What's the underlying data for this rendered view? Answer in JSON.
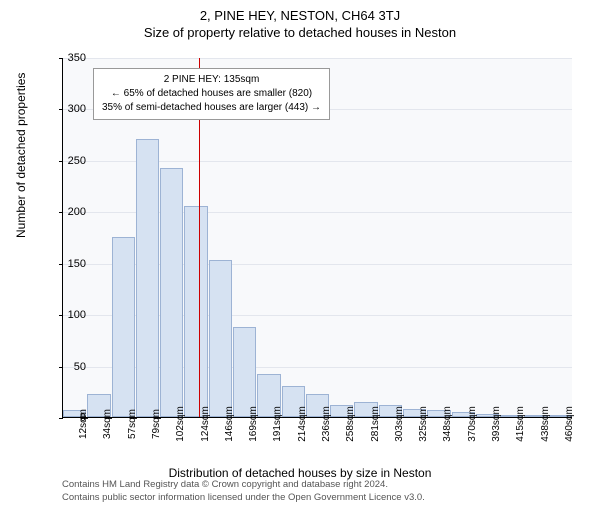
{
  "title_main": "2, PINE HEY, NESTON, CH64 3TJ",
  "title_sub": "Size of property relative to detached houses in Neston",
  "chart": {
    "type": "histogram",
    "background_color": "#f8f9fb",
    "bar_fill": "#d6e2f2",
    "bar_stroke": "#9db3d4",
    "marker_color": "#cc0000",
    "grid_color": "#e3e6ed",
    "ylim": [
      0,
      350
    ],
    "ytick_step": 50,
    "ylabel": "Number of detached properties",
    "xlabel": "Distribution of detached houses by size in Neston",
    "x_categories": [
      "12sqm",
      "34sqm",
      "57sqm",
      "79sqm",
      "102sqm",
      "124sqm",
      "146sqm",
      "169sqm",
      "191sqm",
      "214sqm",
      "236sqm",
      "258sqm",
      "281sqm",
      "303sqm",
      "325sqm",
      "348sqm",
      "370sqm",
      "393sqm",
      "415sqm",
      "438sqm",
      "460sqm"
    ],
    "values": [
      7,
      22,
      175,
      270,
      242,
      205,
      153,
      88,
      42,
      30,
      22,
      12,
      15,
      12,
      8,
      7,
      5,
      3,
      2,
      1,
      2
    ],
    "marker_index": 5.6,
    "infobox": {
      "line1": "2 PINE HEY: 135sqm",
      "line2": "← 65% of detached houses are smaller (820)",
      "line3": "35% of semi-detached houses are larger (443) →"
    }
  },
  "footer": {
    "line1": "Contains HM Land Registry data © Crown copyright and database right 2024.",
    "line2": "Contains public sector information licensed under the Open Government Licence v3.0."
  }
}
